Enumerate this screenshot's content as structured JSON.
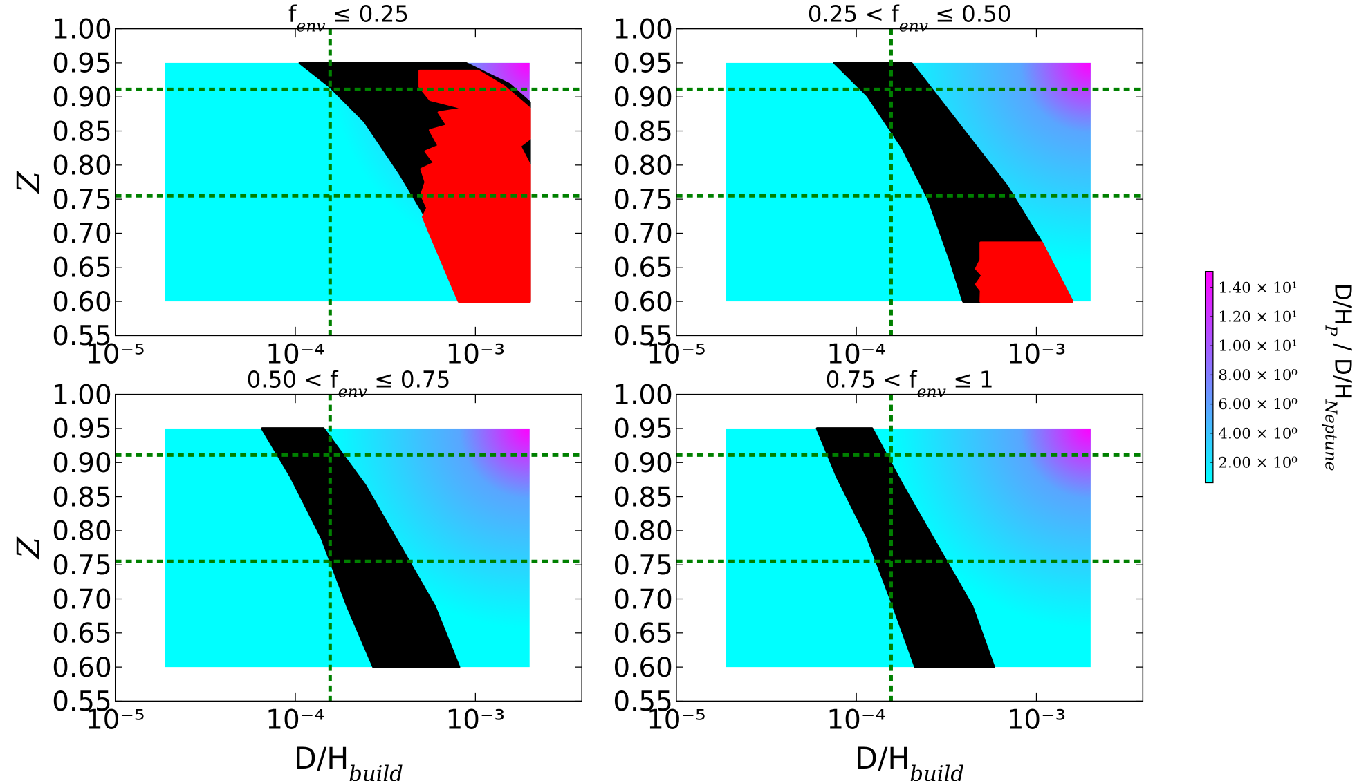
{
  "chart_data": [
    {
      "type": "scatter",
      "title": [
        "f",
        "env",
        " ≤ 0.25"
      ],
      "ylabel": "Z",
      "log_x": true,
      "xlim": [
        1e-05,
        0.0039
      ],
      "xticks": [
        {
          "value": 1e-05,
          "label": "10⁻⁵"
        },
        {
          "value": 0.0001,
          "label": "10⁻⁴"
        },
        {
          "value": 0.001,
          "label": "10⁻³"
        }
      ],
      "ylim": [
        0.55,
        1
      ],
      "yticks": [
        0.55,
        {
          "value": 0.6,
          "label": "0.60"
        },
        0.65,
        {
          "value": 0.7,
          "label": "0.70"
        },
        0.75,
        {
          "value": 0.8,
          "label": "0.80"
        },
        0.85,
        {
          "value": 0.9,
          "label": "0.90"
        },
        0.95,
        {
          "value": 1,
          "label": "1.00"
        }
      ],
      "domain": {
        "x": [
          1.885e-05,
          0.002
        ],
        "y": [
          0.6,
          0.95
        ]
      },
      "regions": [
        {
          "color": "#000000",
          "x": [
            0.000106,
            0.000875,
            0.00116,
            0.00153,
            0.002,
            0.002,
            0.000828,
            0.000783,
            0.00053,
            0.00038,
            0.000243,
            0.000156
          ],
          "y": [
            0.95,
            0.95,
            0.934,
            0.919,
            0.892,
            0.6,
            0.6,
            0.622,
            0.724,
            0.788,
            0.864,
            0.915
          ]
        },
        {
          "color": "#ff0000",
          "x": [
            0.000491,
            0.001034,
            0.001444,
            0.002,
            0.002,
            0.001764,
            0.002,
            0.002,
            0.00081,
            0.000561,
            0.000513,
            0.000542,
            0.000502,
            0.00053,
            0.000502,
            0.000593,
            0.00053,
            0.000627,
            0.000561,
            0.0007,
            0.000627,
            0.000875,
            0.000561,
            0.000491
          ],
          "y": [
            0.938,
            0.938,
            0.915,
            0.883,
            0.839,
            0.828,
            0.8,
            0.6,
            0.6,
            0.699,
            0.724,
            0.737,
            0.756,
            0.775,
            0.794,
            0.803,
            0.82,
            0.828,
            0.851,
            0.858,
            0.877,
            0.883,
            0.896,
            0.915
          ]
        }
      ],
      "ref_lines": {
        "color": "#008000",
        "x": [
          0.000156
        ],
        "y": [
          0.911,
          0.755
        ]
      }
    },
    {
      "type": "scatter",
      "title": [
        "0.25 < f",
        "env",
        " ≤ 0.50"
      ],
      "log_x": true,
      "xlim": [
        1e-05,
        0.0039
      ],
      "xticks": [
        {
          "value": 1e-05,
          "label": "10⁻⁵"
        },
        {
          "value": 0.0001,
          "label": "10⁻⁴"
        },
        {
          "value": 0.001,
          "label": "10⁻³"
        }
      ],
      "ylim": [
        0.55,
        1
      ],
      "yticks": [
        0.55,
        {
          "value": 0.6,
          "label": "0.60"
        },
        0.65,
        {
          "value": 0.7,
          "label": "0.70"
        },
        0.75,
        {
          "value": 0.8,
          "label": "0.80"
        },
        0.85,
        {
          "value": 0.9,
          "label": "0.90"
        },
        0.95,
        {
          "value": 1,
          "label": "1.00"
        }
      ],
      "domain": {
        "x": [
          1.885e-05,
          0.002
        ],
        "y": [
          0.6,
          0.95
        ]
      },
      "regions": [
        {
          "color": "#000000",
          "x": [
            7.57e-05,
            0.000201,
            0.000393,
            0.000685,
            0.001069,
            0.001578,
            0.000393,
            0.000332,
            0.000252,
            0.00018,
            0.0001155
          ],
          "y": [
            0.95,
            0.95,
            0.851,
            0.769,
            0.686,
            0.6,
            0.6,
            0.661,
            0.75,
            0.826,
            0.902
          ]
        },
        {
          "color": "#ff0000",
          "x": [
            0.000491,
            0.001069,
            0.001578,
            0.000491,
            0.000493,
            0.000464,
            0.000502,
            0.000464,
            0.000491
          ],
          "y": [
            0.686,
            0.686,
            0.6,
            0.6,
            0.616,
            0.625,
            0.638,
            0.648,
            0.661
          ]
        }
      ],
      "ref_lines": {
        "color": "#008000",
        "x": [
          0.000156
        ],
        "y": [
          0.911,
          0.755
        ]
      }
    },
    {
      "type": "scatter",
      "title": [
        "0.50 < f",
        "env",
        " ≤ 0.75"
      ],
      "ylabel": "Z",
      "xlabel": [
        "D/H",
        "build"
      ],
      "log_x": true,
      "xlim": [
        1e-05,
        0.0039
      ],
      "xticks": [
        {
          "value": 1e-05,
          "label": "10⁻⁵"
        },
        {
          "value": 0.0001,
          "label": "10⁻⁴"
        },
        {
          "value": 0.001,
          "label": "10⁻³"
        }
      ],
      "ylim": [
        0.55,
        1
      ],
      "yticks": [
        0.55,
        {
          "value": 0.6,
          "label": "0.60"
        },
        0.65,
        {
          "value": 0.7,
          "label": "0.70"
        },
        0.75,
        {
          "value": 0.8,
          "label": "0.80"
        },
        0.85,
        {
          "value": 0.9,
          "label": "0.90"
        },
        0.95,
        {
          "value": 1,
          "label": "1.00"
        }
      ],
      "domain": {
        "x": [
          1.885e-05,
          0.002
        ],
        "y": [
          0.6,
          0.95
        ]
      },
      "regions": [
        {
          "color": "#000000",
          "x": [
            6.55e-05,
            0.000143,
            0.000243,
            0.00038,
            0.000593,
            0.00081,
            0.000272,
            0.000195,
            0.00014,
            9.46e-05
          ],
          "y": [
            0.95,
            0.95,
            0.867,
            0.778,
            0.689,
            0.6,
            0.6,
            0.689,
            0.79,
            0.879
          ]
        }
      ],
      "ref_lines": {
        "color": "#008000",
        "x": [
          0.000156
        ],
        "y": [
          0.911,
          0.755
        ]
      }
    },
    {
      "type": "scatter",
      "title": [
        "0.75 < f",
        "env",
        " ≤ 1"
      ],
      "xlabel": [
        "D/H",
        "build"
      ],
      "log_x": true,
      "xlim": [
        1e-05,
        0.0039
      ],
      "xticks": [
        {
          "value": 1e-05,
          "label": "10⁻⁵"
        },
        {
          "value": 0.0001,
          "label": "10⁻⁴"
        },
        {
          "value": 0.001,
          "label": "10⁻³"
        }
      ],
      "ylim": [
        0.55,
        1
      ],
      "yticks": [
        0.55,
        {
          "value": 0.6,
          "label": "0.60"
        },
        0.65,
        {
          "value": 0.7,
          "label": "0.70"
        },
        0.75,
        {
          "value": 0.8,
          "label": "0.80"
        },
        0.85,
        {
          "value": 0.9,
          "label": "0.90"
        },
        0.95,
        {
          "value": 1,
          "label": "1.00"
        }
      ],
      "domain": {
        "x": [
          1.885e-05,
          0.002
        ],
        "y": [
          0.6,
          0.95
        ]
      },
      "regions": [
        {
          "color": "#000000",
          "x": [
            6.06e-05,
            0.000122,
            0.00018,
            0.000281,
            0.000439,
            0.00058,
            0.000213,
            0.000161,
            0.0001155,
            7.83e-05
          ],
          "y": [
            0.95,
            0.95,
            0.867,
            0.778,
            0.689,
            0.6,
            0.6,
            0.689,
            0.79,
            0.879
          ]
        }
      ],
      "ref_lines": {
        "color": "#008000",
        "x": [
          0.000156
        ],
        "y": [
          0.911,
          0.755
        ]
      }
    },
    {
      "type": "colorbar",
      "label": [
        "D/H",
        "P",
        " / D/H",
        "Neptune"
      ],
      "colors": [
        "#00ffff",
        "#ff00ff"
      ],
      "ylim": [
        0.6,
        15.1
      ],
      "yticks": [
        {
          "value": 2,
          "label": "2.00 × 10⁰"
        },
        {
          "value": 4,
          "label": "4.00 × 10⁰"
        },
        {
          "value": 6,
          "label": "6.00 × 10⁰"
        },
        {
          "value": 8,
          "label": "8.00 × 10⁰"
        },
        {
          "value": 10,
          "label": "1.00 × 10¹"
        },
        {
          "value": 12,
          "label": "1.20 × 10¹"
        },
        {
          "value": 14,
          "label": "1.40 × 10¹"
        }
      ]
    }
  ]
}
